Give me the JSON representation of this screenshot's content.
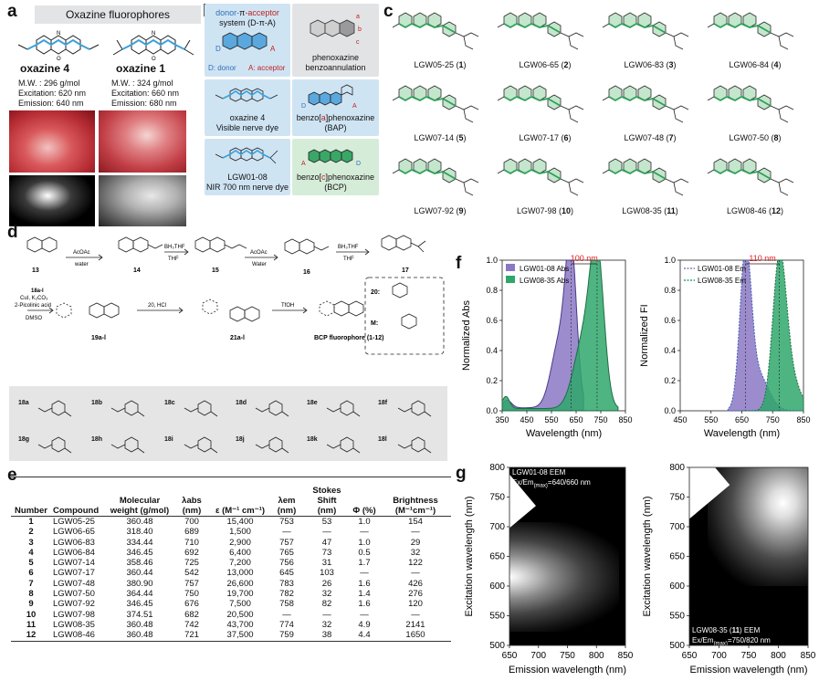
{
  "panel_a": {
    "label": "a",
    "title": "Oxazine fluorophores",
    "dye1": {
      "name": "oxazine 4",
      "mw": "M.W. : 296 g/mol",
      "ex": "Excitation: 620 nm",
      "em": "Emission: 640 nm"
    },
    "dye2": {
      "name": "oxazine 1",
      "mw": "M.W. : 324 g/mol",
      "ex": "Excitation: 660 nm",
      "em": "Emission: 680 nm"
    }
  },
  "panel_b": {
    "label": "b",
    "t1_line1_a": "donor-",
    "t1_line1_b": "π",
    "t1_line1_c": "-acceptor",
    "t1_line2": "system (D-π-A)",
    "t1_d": "D",
    "t1_a": "A",
    "t1_legend_d": "D: donor",
    "t1_legend_a": "A: acceptor",
    "t2_line1": "phenoxazine",
    "t2_line2": "benzoannulation",
    "ring_a": "a",
    "ring_b": "b",
    "ring_c": "c",
    "t3_line1": "oxazine 4",
    "t3_line2": "Visible nerve dye",
    "t4_prefix": "benzo[",
    "t4_letter": "a",
    "t4_suffix": "]phenoxazine",
    "t4_abbr": "(BAP)",
    "t5_line1": "LGW01-08",
    "t5_line2": "NIR 700 nm nerve dye",
    "t6_prefix": "benzo[",
    "t6_letter": "c",
    "t6_suffix": "]phenoxazine",
    "t6_abbr": "(BCP)"
  },
  "panel_c": {
    "label": "c",
    "compounds": [
      {
        "name": "LGW05-25 (",
        "num": "1",
        "close": ")"
      },
      {
        "name": "LGW06-65 (",
        "num": "2",
        "close": ")"
      },
      {
        "name": "LGW06-83 (",
        "num": "3",
        "close": ")"
      },
      {
        "name": "LGW06-84 (",
        "num": "4",
        "close": ")"
      },
      {
        "name": "LGW07-14 (",
        "num": "5",
        "close": ")"
      },
      {
        "name": "LGW07-17 (",
        "num": "6",
        "close": ")"
      },
      {
        "name": "LGW07-48 (",
        "num": "7",
        "close": ")"
      },
      {
        "name": "LGW07-50 (",
        "num": "8",
        "close": ")"
      },
      {
        "name": "LGW07-92 (",
        "num": "9",
        "close": ")"
      },
      {
        "name": "LGW07-98 (",
        "num": "10",
        "close": ")"
      },
      {
        "name": "LGW08-35 (",
        "num": "11",
        "close": ")"
      },
      {
        "name": "LGW08-46 (",
        "num": "12",
        "close": ")"
      }
    ]
  },
  "panel_d": {
    "label": "d",
    "c13": "13",
    "c14": "14",
    "c15": "15",
    "c16": "16",
    "c17": "17",
    "r1_top": "AcOAc",
    "r1_bot": "water",
    "r2_top": "BH₃THF",
    "r2_bot": "THF",
    "r3_top": "AcOAc",
    "r3_bot": "Water",
    "r4_top": "BH₃THF",
    "r4_bot": "THF",
    "cond1": "18a-l",
    "cond2": "CuI, K₂CO₃",
    "cond3": "2-Picolinic acid",
    "cond4": "DMSO",
    "c19": "19a-l",
    "r5": "20, HCl",
    "c21": "21a-l",
    "r6": "TfOH",
    "bcp": "BCP fluorophore (1-12)",
    "box20": "20:",
    "boxM": "M:",
    "reagents": [
      "18a",
      "18b",
      "18c",
      "18d",
      "18e",
      "18f",
      "18g",
      "18h",
      "18i",
      "18j",
      "18k",
      "18l"
    ]
  },
  "panel_e": {
    "label": "e",
    "headers": [
      "Number",
      "Compound",
      "Molecular weight (g/mol)",
      "λabs (nm)",
      "ε (M⁻¹ cm⁻¹)",
      "λem (nm)",
      "Stokes Shift (nm)",
      "Φ (%)",
      "Brightness (M⁻¹cm⁻¹)"
    ],
    "rows": [
      [
        "1",
        "LGW05-25",
        "360.48",
        "700",
        "15,400",
        "753",
        "53",
        "1.0",
        "154"
      ],
      [
        "2",
        "LGW06-65",
        "318.40",
        "689",
        "1,500",
        "—",
        "—",
        "—",
        "—"
      ],
      [
        "3",
        "LGW06-83",
        "334.44",
        "710",
        "2,900",
        "757",
        "47",
        "1.0",
        "29"
      ],
      [
        "4",
        "LGW06-84",
        "346.45",
        "692",
        "6,400",
        "765",
        "73",
        "0.5",
        "32"
      ],
      [
        "5",
        "LGW07-14",
        "358.46",
        "725",
        "7,200",
        "756",
        "31",
        "1.7",
        "122"
      ],
      [
        "6",
        "LGW07-17",
        "360.44",
        "542",
        "13,000",
        "645",
        "103",
        "—",
        "—"
      ],
      [
        "7",
        "LGW07-48",
        "380.90",
        "757",
        "26,600",
        "783",
        "26",
        "1.6",
        "426"
      ],
      [
        "8",
        "LGW07-50",
        "364.44",
        "750",
        "19,700",
        "782",
        "32",
        "1.4",
        "276"
      ],
      [
        "9",
        "LGW07-92",
        "346.45",
        "676",
        "7,500",
        "758",
        "82",
        "1.6",
        "120"
      ],
      [
        "10",
        "LGW07-98",
        "374.51",
        "682",
        "20,500",
        "—",
        "—",
        "—",
        "—"
      ],
      [
        "11",
        "LGW08-35",
        "360.48",
        "742",
        "43,700",
        "774",
        "32",
        "4.9",
        "2141"
      ],
      [
        "12",
        "LGW08-46",
        "360.48",
        "721",
        "37,500",
        "759",
        "38",
        "4.4",
        "1650"
      ]
    ]
  },
  "panel_f": {
    "label": "f",
    "colors": {
      "purple": "#8b78c4",
      "green": "#2fa76b",
      "blue": "#3a5fb0",
      "red": "#e02020"
    },
    "abs_plot": {
      "ylabel": "Normalized Abs",
      "xlabel": "Wavelength (nm)",
      "xticks": [
        "350",
        "450",
        "550",
        "650",
        "750",
        "850"
      ],
      "yticks": [
        "0.0",
        "0.2",
        "0.4",
        "0.6",
        "0.8",
        "1.0"
      ],
      "legend": [
        "LGW01-08 Abs",
        "LGW08-35 Abs"
      ],
      "shift": "100 nm"
    },
    "em_plot": {
      "ylabel": "Normalized FI",
      "xlabel": "Wavelength (nm)",
      "xticks": [
        "450",
        "550",
        "650",
        "750",
        "850"
      ],
      "yticks": [
        "0.0",
        "0.2",
        "0.4",
        "0.6",
        "0.8",
        "1.0"
      ],
      "legend": [
        "LGW01-08 Em",
        "LGW08-35 Em"
      ],
      "shift": "110 nm"
    }
  },
  "panel_g": {
    "label": "g",
    "eem1": {
      "title": "LGW01-08 EEM",
      "sub": "Ex/Em",
      "subsub": "(max)",
      "val": "=640/660 nm"
    },
    "eem2": {
      "title_a": "LGW08-35 (",
      "title_num": "11",
      "title_b": ") EEM",
      "sub": "Ex/Em",
      "subsub": "(max)",
      "val": "=750/820 nm"
    },
    "ylabel": "Excitation wavelength (nm)",
    "xlabel": "Emission wavelength (nm)",
    "xticks": [
      "650",
      "700",
      "750",
      "800",
      "850"
    ],
    "yticks": [
      "800",
      "750",
      "700",
      "650",
      "600",
      "550",
      "500"
    ]
  }
}
